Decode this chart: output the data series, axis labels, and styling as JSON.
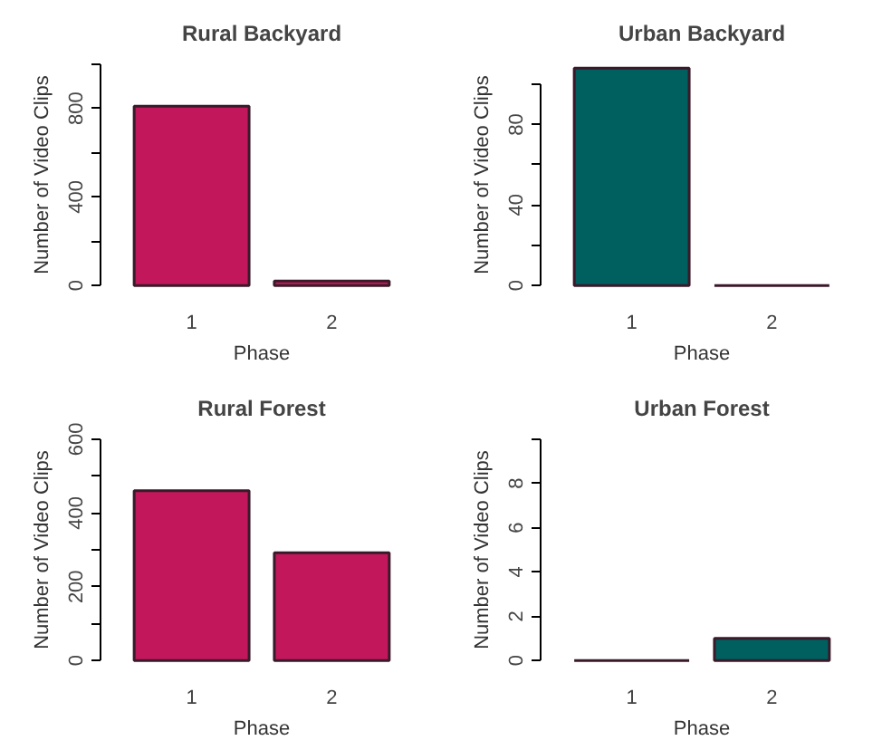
{
  "chart_data": [
    {
      "type": "bar",
      "title": "Rural Backyard",
      "xlabel": "Phase",
      "ylabel": "Number of Video Clips",
      "categories": [
        "1",
        "2"
      ],
      "values": [
        810,
        20
      ],
      "color": "#c2185b",
      "ylim": [
        0,
        1000
      ],
      "yticks": [
        0,
        {
          "value": 200,
          "label": null
        },
        400,
        {
          "value": 600,
          "label": null
        },
        800,
        {
          "value": 1000,
          "label": null
        }
      ]
    },
    {
      "type": "bar",
      "title": "Urban Backyard",
      "xlabel": "Phase",
      "ylabel": "Number of Video Clips",
      "categories": [
        "1",
        "2"
      ],
      "values": [
        108,
        0
      ],
      "color": "#005f5f",
      "ylim": [
        0,
        110
      ],
      "yticks": [
        0,
        {
          "value": 20,
          "label": null
        },
        40,
        {
          "value": 60,
          "label": null
        },
        80,
        {
          "value": 100,
          "label": null
        }
      ]
    },
    {
      "type": "bar",
      "title": "Rural Forest",
      "xlabel": "Phase",
      "ylabel": "Number of Video Clips",
      "categories": [
        "1",
        "2"
      ],
      "values": [
        460,
        292
      ],
      "color": "#c2185b",
      "ylim": [
        0,
        600
      ],
      "yticks": [
        0,
        {
          "value": 100,
          "label": null
        },
        200,
        {
          "value": 300,
          "label": null
        },
        400,
        {
          "value": 500,
          "label": null
        },
        600
      ]
    },
    {
      "type": "bar",
      "title": "Urban Forest",
      "xlabel": "Phase",
      "ylabel": "Number of Video Clips",
      "categories": [
        "1",
        "2"
      ],
      "values": [
        0,
        1
      ],
      "color": "#005f5f",
      "ylim": [
        0,
        10
      ],
      "yticks": [
        0,
        2,
        4,
        6,
        8,
        {
          "value": 10,
          "label": null
        }
      ]
    }
  ]
}
